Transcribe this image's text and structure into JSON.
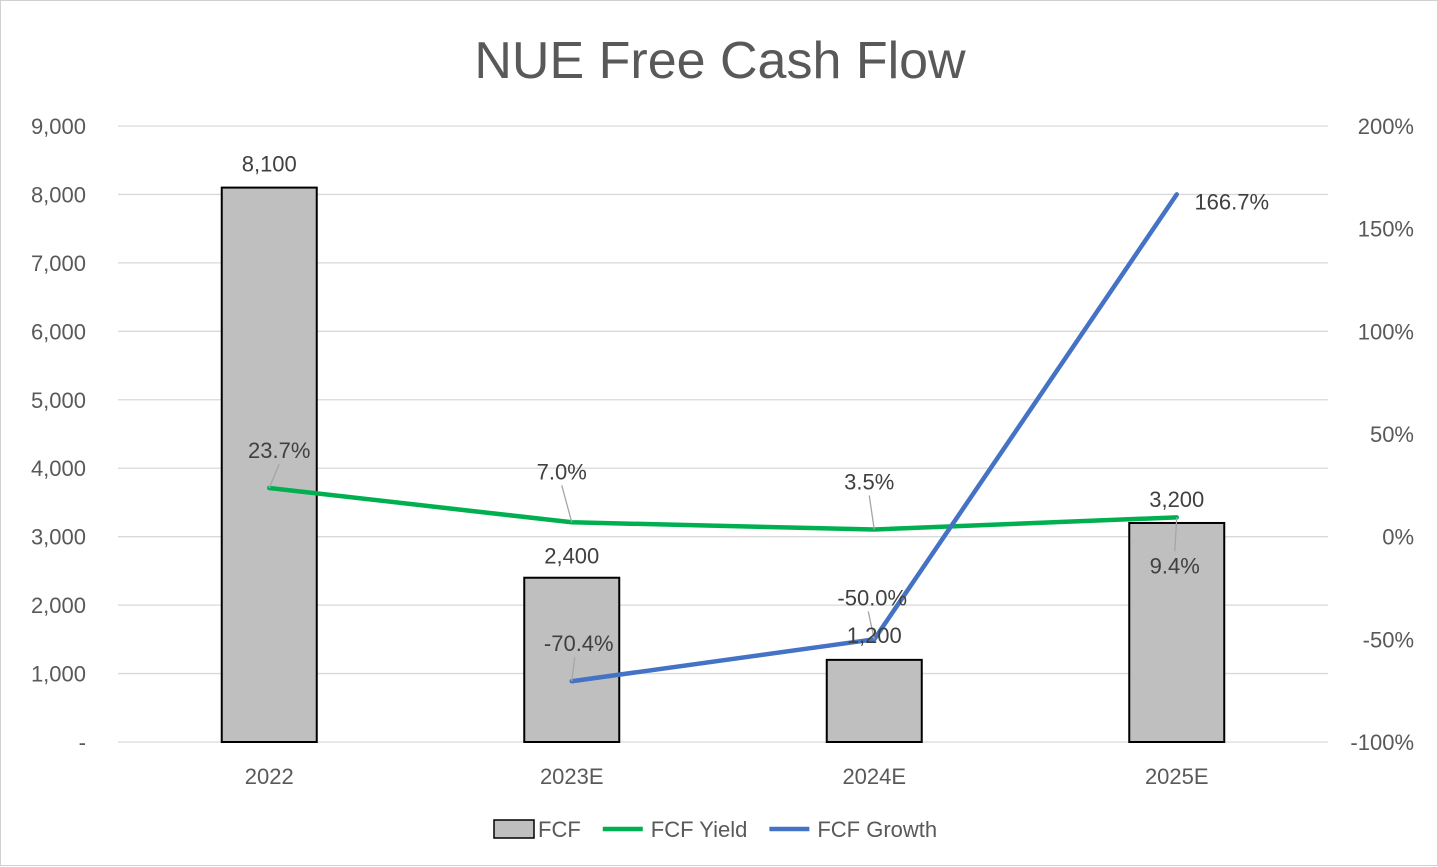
{
  "chart_data": {
    "type": "bar",
    "title": "NUE Free Cash Flow",
    "categories": [
      "2022",
      "2023E",
      "2024E",
      "2025E"
    ],
    "y_left": {
      "ticks": [
        "-",
        "1,000",
        "2,000",
        "3,000",
        "4,000",
        "5,000",
        "6,000",
        "7,000",
        "8,000",
        "9,000"
      ],
      "range": [
        0,
        9000
      ]
    },
    "y_right": {
      "ticks": [
        "-100%",
        "-50%",
        "0%",
        "50%",
        "100%",
        "150%",
        "200%"
      ],
      "range": [
        -100,
        200
      ]
    },
    "grid": true,
    "legend_position": "bottom",
    "series": [
      {
        "name": "FCF",
        "type": "bar",
        "axis": "left",
        "color": "#bfbfbf",
        "values": [
          8100,
          2400,
          1200,
          3200
        ],
        "labels": [
          "8,100",
          "2,400",
          "1,200",
          "3,200"
        ]
      },
      {
        "name": "FCF Yield",
        "type": "line",
        "axis": "right",
        "color": "#00b050",
        "values": [
          23.7,
          7.0,
          3.5,
          9.4
        ],
        "labels": [
          "23.7%",
          "7.0%",
          "3.5%",
          "9.4%"
        ]
      },
      {
        "name": "FCF Growth",
        "type": "line",
        "axis": "right",
        "color": "#4472c4",
        "values": [
          null,
          -70.4,
          -50.0,
          166.7
        ],
        "labels": [
          "",
          "-70.4%",
          "-50.0%",
          "166.7%"
        ]
      }
    ]
  }
}
